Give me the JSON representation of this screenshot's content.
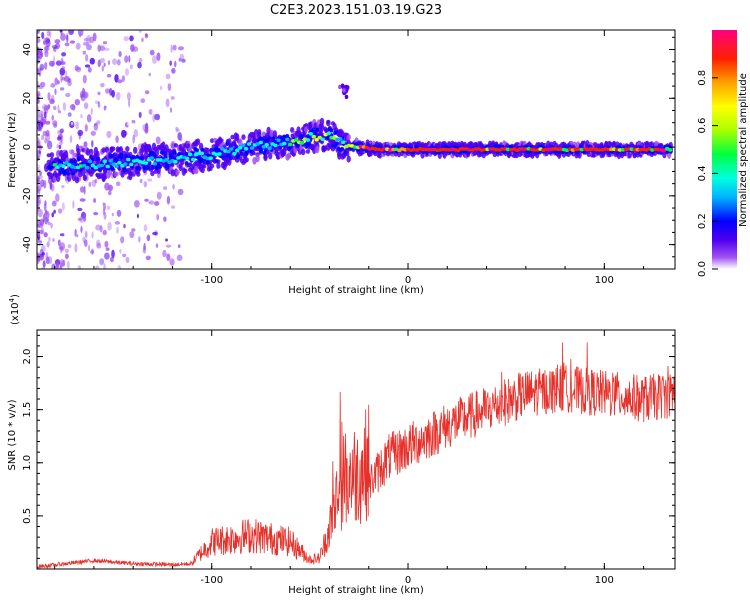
{
  "title": "C2E3.2023.151.03.19.G23",
  "chart_data": [
    {
      "type": "heatmap",
      "name": "spectrogram",
      "xlabel": "Height of straight line (km)",
      "ylabel": "Frequency (Hz)",
      "xlim": [
        -189,
        136
      ],
      "ylim": [
        -50,
        48
      ],
      "x_ticks": [
        -100,
        0,
        100
      ],
      "y_ticks": [
        -40,
        -20,
        0,
        20,
        40
      ],
      "x_tick_labels": [
        "-100",
        "0",
        "100"
      ],
      "y_tick_labels": [
        "-40",
        "-20",
        "0",
        "20",
        "40"
      ],
      "ridge": {
        "x": [
          -178,
          -160,
          -140,
          -120,
          -100,
          -80,
          -60,
          -50,
          -40,
          -33,
          -25,
          -15,
          0,
          25,
          50,
          75,
          100,
          136
        ],
        "y": [
          -8,
          -7,
          -6,
          -5,
          -3,
          0,
          2,
          4,
          5,
          1,
          0,
          -1,
          -1,
          -1,
          -1,
          -1,
          -1,
          -1
        ]
      },
      "burst": {
        "x": -33,
        "y": 23
      },
      "colorbar": {
        "label": "Normalized spectral amplitude",
        "range": [
          0,
          1
        ],
        "ticks": [
          0.0,
          0.2,
          0.4,
          0.6,
          0.8
        ],
        "tick_labels": [
          "0.0",
          "0.2",
          "0.4",
          "0.6",
          "0.8"
        ],
        "colors": [
          "#ffffff",
          "#a050f0",
          "#5000f0",
          "#0000ff",
          "#00b4ff",
          "#00ffe0",
          "#00ff40",
          "#aaff00",
          "#ffff00",
          "#ffa000",
          "#ff2000",
          "#ff0080"
        ]
      }
    },
    {
      "type": "line",
      "name": "snr",
      "xlabel": "Height of straight line (km)",
      "ylabel": "SNR (10 * v/v)",
      "y_multiplier": "(x10",
      "y_multiplier_exp": "4",
      "xlim": [
        -189,
        136
      ],
      "ylim": [
        0,
        2.25
      ],
      "x_ticks": [
        -100,
        0,
        100
      ],
      "y_ticks": [
        0.5,
        1.0,
        1.5,
        2.0
      ],
      "x_tick_labels": [
        "-100",
        "0",
        "100"
      ],
      "y_tick_labels": [
        "0.5",
        "1.0",
        "1.5",
        "2.0"
      ],
      "color": "#e8302a",
      "envelope": {
        "x": [
          -189,
          -160,
          -140,
          -120,
          -110,
          -100,
          -80,
          -60,
          -50,
          -45,
          -40,
          -35,
          -30,
          -25,
          -20,
          -10,
          0,
          20,
          40,
          60,
          80,
          100,
          120,
          136
        ],
        "y": [
          0.02,
          0.08,
          0.05,
          0.04,
          0.05,
          0.2,
          0.25,
          0.2,
          0.07,
          0.08,
          0.3,
          0.6,
          0.7,
          0.7,
          0.8,
          1.05,
          1.15,
          1.35,
          1.5,
          1.65,
          1.7,
          1.65,
          1.6,
          1.65
        ]
      }
    }
  ]
}
